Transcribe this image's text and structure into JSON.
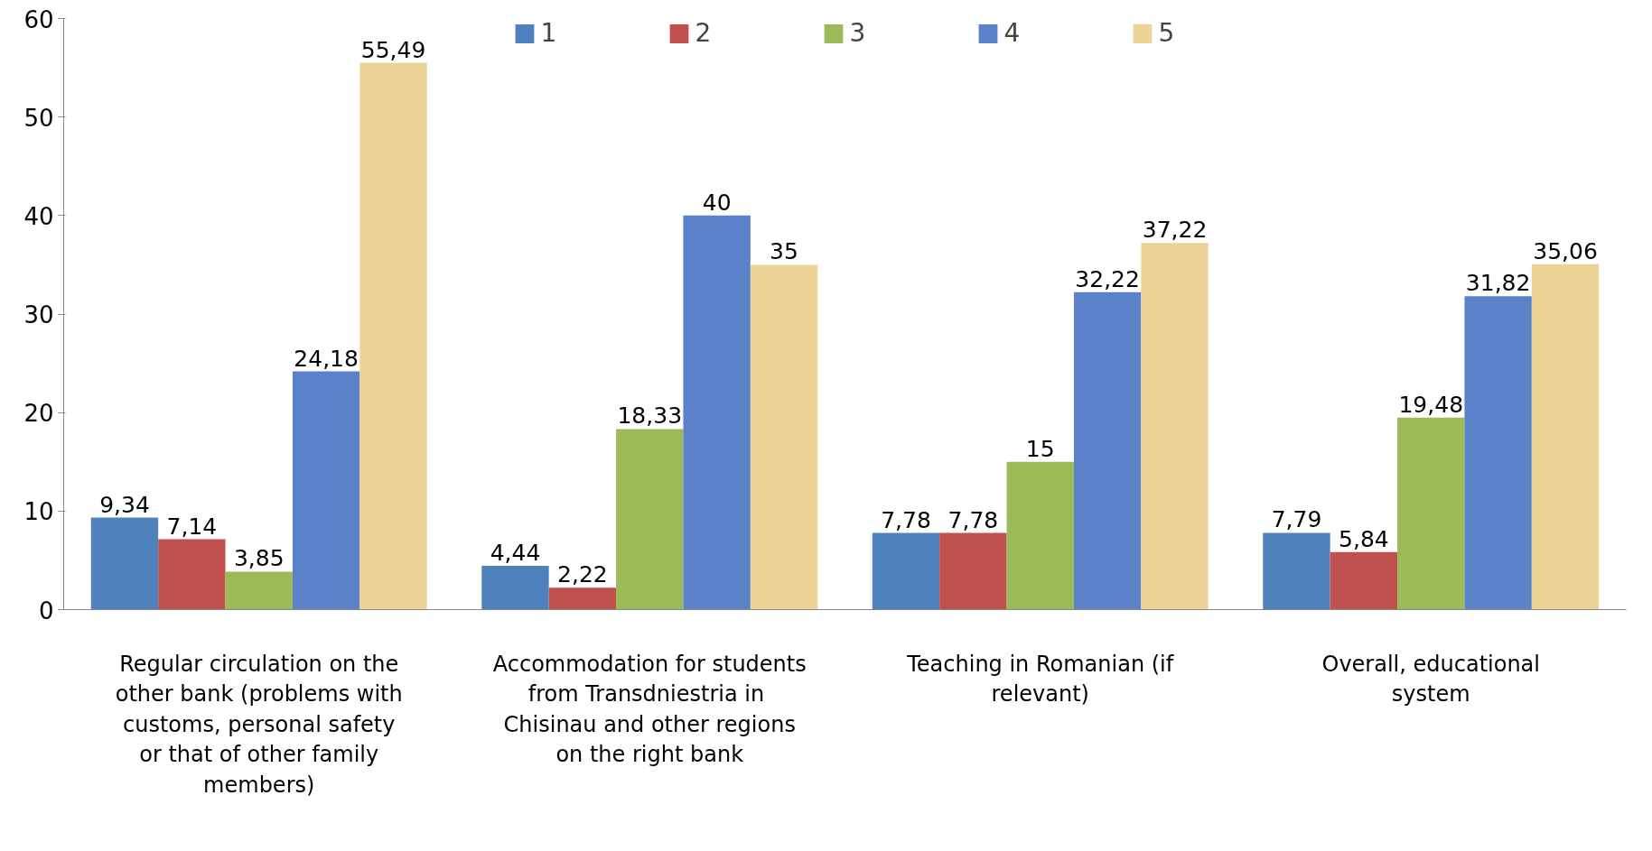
{
  "chart_data": {
    "type": "bar",
    "categories": [
      "Regular circulation on the other bank (problems with customs, personal safety or that of other family members)",
      "Accommodation for students from Transdniestria  in Chisinau and other regions on the right bank",
      "Teaching in Romanian (if relevant)",
      "Overall, educational system"
    ],
    "series": [
      {
        "name": "1",
        "color": "#4f81bd",
        "values": [
          9.34,
          4.44,
          7.78,
          7.79
        ],
        "value_labels": [
          "9,34",
          "4,44",
          "7,78",
          "7,79"
        ]
      },
      {
        "name": "2",
        "color": "#c0504d",
        "values": [
          7.14,
          2.22,
          7.78,
          5.84
        ],
        "value_labels": [
          "7,14",
          "2,22",
          "7,78",
          "5,84"
        ]
      },
      {
        "name": "3",
        "color": "#9bbb59",
        "values": [
          3.85,
          18.33,
          15,
          19.48
        ],
        "value_labels": [
          "3,85",
          "18,33",
          "15",
          "19,48"
        ]
      },
      {
        "name": "4",
        "color": "#5b82c8",
        "values": [
          24.18,
          40,
          32.22,
          31.82
        ],
        "value_labels": [
          "24,18",
          "40",
          "32,22",
          "31,82"
        ]
      },
      {
        "name": "5",
        "color": "#ecd498",
        "values": [
          55.49,
          35,
          37.22,
          35.06
        ],
        "value_labels": [
          "55,49",
          "35",
          "37,22",
          "35,06"
        ]
      }
    ],
    "ylim": [
      0,
      60
    ],
    "yticks": [
      0,
      10,
      20,
      30,
      40,
      50,
      60
    ],
    "grid": false,
    "legend": "top"
  }
}
